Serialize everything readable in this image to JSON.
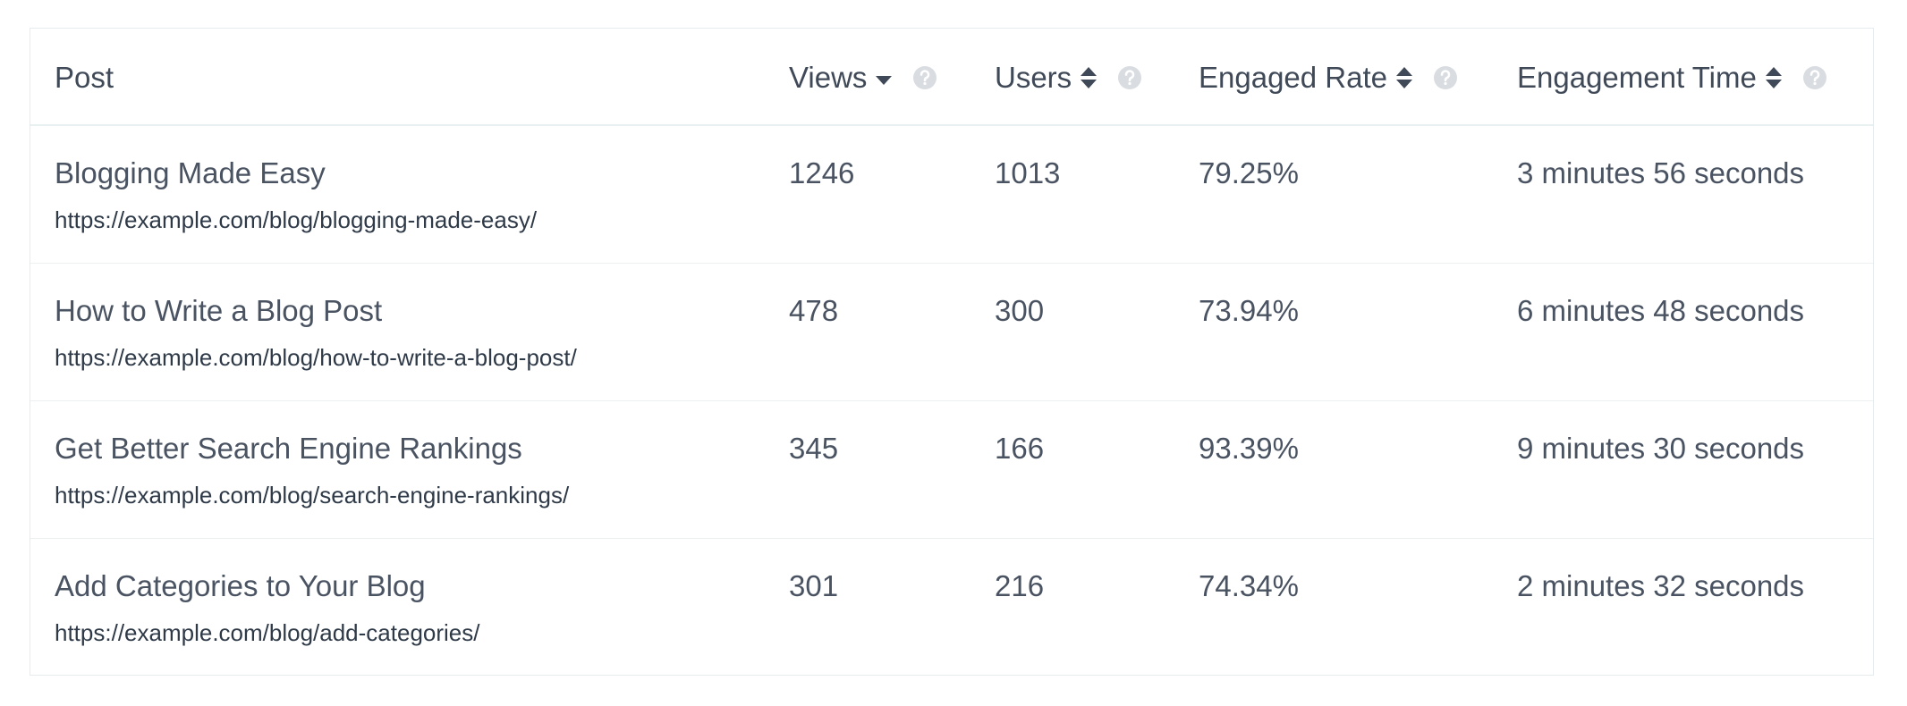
{
  "table": {
    "headers": [
      "Post",
      "Views",
      "Users",
      "Engaged Rate",
      "Engagement Time"
    ],
    "rows": [
      {
        "title": "Blogging Made Easy",
        "url": "https://example.com/blog/blogging-made-easy/",
        "views": 1246,
        "users": 1013,
        "engaged_rate": "79.25%",
        "engagement_time": "3 minutes 56 seconds"
      },
      {
        "title": "How to Write a Blog Post",
        "url": "https://example.com/blog/how-to-write-a-blog-post/",
        "views": 478,
        "users": 300,
        "engaged_rate": "73.94%",
        "engagement_time": "6 minutes 48 seconds"
      },
      {
        "title": "Get Better Search Engine Rankings",
        "url": "https://example.com/blog/search-engine-rankings/",
        "views": 345,
        "users": 166,
        "engaged_rate": "93.39%",
        "engagement_time": "9 minutes 30 seconds"
      },
      {
        "title": "Add Categories to Your Blog",
        "url": "https://example.com/blog/add-categories/",
        "views": 301,
        "users": 216,
        "engaged_rate": "74.34%",
        "engagement_time": "2 minutes 32 seconds"
      }
    ]
  }
}
